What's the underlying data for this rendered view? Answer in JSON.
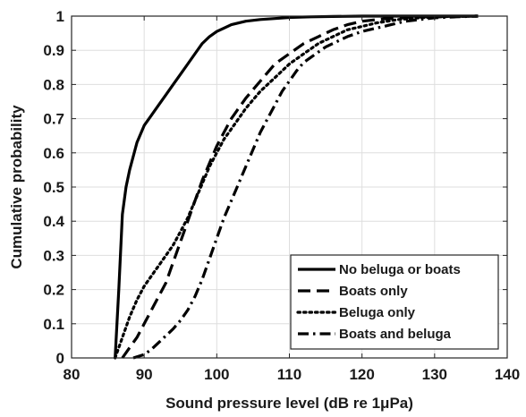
{
  "chart_data": {
    "type": "line",
    "title": "",
    "xlabel": "Sound pressure level (dB re 1μPa)",
    "ylabel": "Cumulative probability",
    "xlim": [
      80,
      140
    ],
    "ylim": [
      0,
      1
    ],
    "xticks": [
      "80",
      "90",
      "100",
      "110",
      "120",
      "130",
      "140"
    ],
    "yticks": [
      "0",
      "0.1",
      "0.2",
      "0.3",
      "0.4",
      "0.5",
      "0.6",
      "0.7",
      "0.8",
      "0.9",
      "1"
    ],
    "grid": true,
    "legend_position": "bottom-right",
    "line_color": "#000000",
    "series": [
      {
        "name": "No beluga or boats",
        "style": "solid",
        "x": [
          86,
          86.5,
          87,
          87.5,
          88,
          89,
          90,
          91,
          92,
          93,
          94,
          95,
          96,
          97,
          98,
          99,
          100,
          101,
          102,
          104,
          106,
          108,
          110,
          113,
          116,
          120,
          125,
          130,
          136
        ],
        "y": [
          0,
          0.2,
          0.42,
          0.5,
          0.55,
          0.63,
          0.68,
          0.71,
          0.74,
          0.77,
          0.8,
          0.83,
          0.86,
          0.89,
          0.92,
          0.94,
          0.955,
          0.965,
          0.975,
          0.985,
          0.99,
          0.993,
          0.996,
          0.998,
          0.999,
          1,
          1,
          1,
          1
        ]
      },
      {
        "name": "Boats only",
        "style": "dashed",
        "x": [
          87,
          88,
          89,
          90,
          91,
          92,
          93,
          94,
          95,
          96,
          97,
          98,
          99,
          100,
          101,
          102,
          103,
          104,
          106,
          108,
          110,
          112,
          114,
          116,
          118,
          120,
          123,
          126,
          130,
          136
        ],
        "y": [
          0,
          0.03,
          0.06,
          0.1,
          0.14,
          0.18,
          0.22,
          0.28,
          0.34,
          0.4,
          0.46,
          0.52,
          0.57,
          0.62,
          0.66,
          0.7,
          0.73,
          0.76,
          0.81,
          0.86,
          0.89,
          0.92,
          0.94,
          0.96,
          0.975,
          0.985,
          0.992,
          0.996,
          0.999,
          1
        ]
      },
      {
        "name": "Beluga only",
        "style": "dotted",
        "x": [
          86,
          87,
          88,
          89,
          90,
          91,
          92,
          93,
          94,
          95,
          96,
          97,
          98,
          99,
          100,
          101,
          102,
          103,
          104,
          106,
          108,
          110,
          112,
          114,
          116,
          118,
          120,
          122,
          125,
          128,
          132,
          136
        ],
        "y": [
          0,
          0.06,
          0.12,
          0.17,
          0.21,
          0.24,
          0.27,
          0.3,
          0.33,
          0.37,
          0.41,
          0.46,
          0.51,
          0.56,
          0.6,
          0.64,
          0.67,
          0.7,
          0.73,
          0.78,
          0.82,
          0.86,
          0.89,
          0.92,
          0.94,
          0.96,
          0.97,
          0.98,
          0.99,
          0.995,
          0.999,
          1
        ]
      },
      {
        "name": "Boats and beluga",
        "style": "dashdot",
        "x": [
          88.5,
          90,
          91,
          92,
          93,
          94,
          95,
          96,
          97,
          98,
          99,
          100,
          101,
          102,
          103,
          104,
          105,
          106,
          107,
          108,
          109,
          110,
          111,
          112,
          113,
          114,
          115,
          116,
          117,
          118,
          120,
          122,
          124,
          126,
          128,
          130,
          133,
          136
        ],
        "y": [
          0,
          0.01,
          0.025,
          0.045,
          0.065,
          0.085,
          0.11,
          0.14,
          0.18,
          0.23,
          0.29,
          0.35,
          0.41,
          0.46,
          0.51,
          0.56,
          0.61,
          0.66,
          0.7,
          0.74,
          0.78,
          0.81,
          0.84,
          0.865,
          0.88,
          0.895,
          0.91,
          0.92,
          0.93,
          0.94,
          0.955,
          0.965,
          0.975,
          0.985,
          0.99,
          0.995,
          0.998,
          1
        ]
      }
    ]
  }
}
